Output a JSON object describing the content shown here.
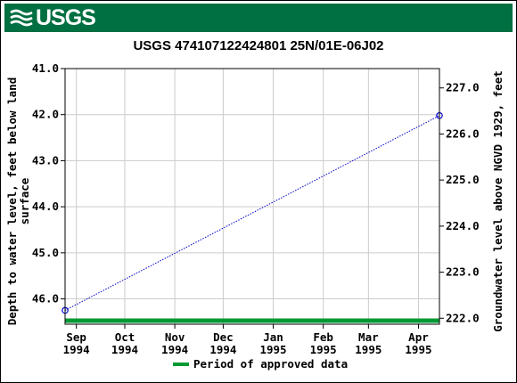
{
  "header": {
    "logo_text": "USGS",
    "brand_color": "#006f41"
  },
  "chart_data": {
    "type": "line",
    "title": "USGS 474107122424801 25N/01E-06J02",
    "ylabel_left": "Depth to water level, feet below land surface",
    "ylabel_left_lines": [
      "Depth to water level, feet below land",
      "surface"
    ],
    "ylabel_right": "Groundwater level above NGVD 1929, feet",
    "x_ticks": [
      {
        "label1": "Sep",
        "label2": "1994",
        "date": "1994-09-01"
      },
      {
        "label1": "Oct",
        "label2": "1994",
        "date": "1994-10-01"
      },
      {
        "label1": "Nov",
        "label2": "1994",
        "date": "1994-11-01"
      },
      {
        "label1": "Dec",
        "label2": "1994",
        "date": "1994-12-01"
      },
      {
        "label1": "Jan",
        "label2": "1995",
        "date": "1995-01-01"
      },
      {
        "label1": "Feb",
        "label2": "1995",
        "date": "1995-02-01"
      },
      {
        "label1": "Mar",
        "label2": "1995",
        "date": "1995-03-01"
      },
      {
        "label1": "Apr",
        "label2": "1995",
        "date": "1995-04-01"
      }
    ],
    "xlim": [
      "1994-08-25",
      "1995-04-14"
    ],
    "y_left_ticks": [
      "41.0",
      "42.0",
      "43.0",
      "44.0",
      "45.0",
      "46.0"
    ],
    "y_left_lim": [
      41.0,
      46.55
    ],
    "y_right_ticks": [
      "227.0",
      "226.0",
      "225.0",
      "224.0",
      "223.0",
      "222.0"
    ],
    "y_right_lim": [
      227.42,
      221.87
    ],
    "series": [
      {
        "values": [
          {
            "date": "1994-08-25",
            "depth": 46.25
          },
          {
            "date": "1995-04-14",
            "depth": 42.02
          }
        ],
        "color": "#0000cc"
      }
    ],
    "approved_period": {
      "start": "1994-08-25",
      "end": "1995-04-14",
      "color": "#009933"
    },
    "legend": [
      {
        "label": "Period of approved data",
        "color": "#009933"
      }
    ],
    "legend_position": "bottom",
    "grid": true
  }
}
